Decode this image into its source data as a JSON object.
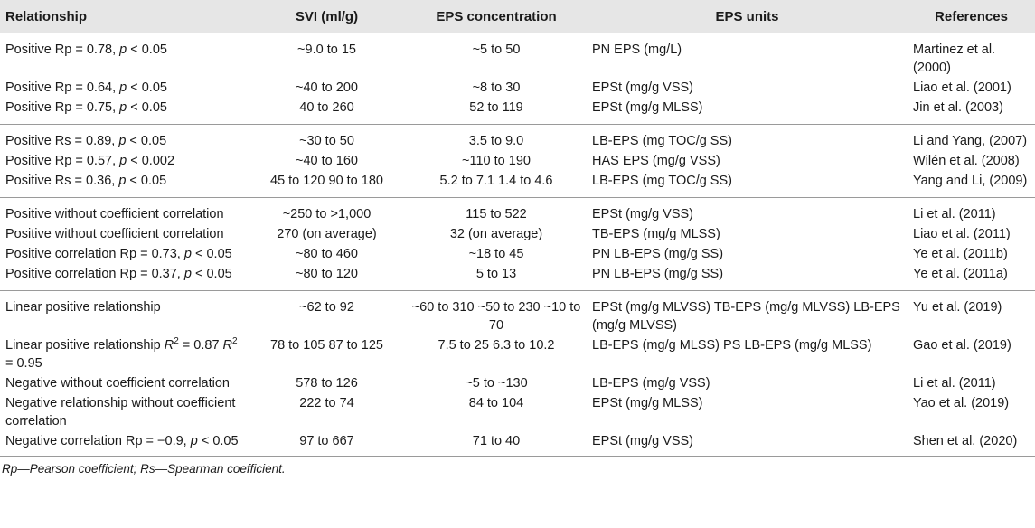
{
  "headers": {
    "relationship": "Relationship",
    "svi": "SVI (ml/g)",
    "eps_conc": "EPS concentration",
    "eps_units": "EPS units",
    "references": "References"
  },
  "rows": [
    {
      "rel": "Positive Rp = 0.78, p < 0.05",
      "svi": "~9.0 to 15",
      "conc": "~5 to 50",
      "units": "PN EPS (mg/L)",
      "ref": "Martinez et al. (2000)"
    },
    {
      "rel": "Positive Rp = 0.64, p < 0.05",
      "svi": "~40 to 200",
      "conc": "~8 to 30",
      "units": "EPSt (mg/g VSS)",
      "ref": "Liao et al. (2001)"
    },
    {
      "rel": "Positive Rp = 0.75, p < 0.05",
      "svi": "40 to 260",
      "conc": "52 to 119",
      "units": "EPSt (mg/g MLSS)",
      "ref": "Jin et al. (2003)"
    },
    {
      "rel": "Positive Rs = 0.89, p < 0.05",
      "svi": "~30 to 50",
      "conc": "3.5 to 9.0",
      "units": "LB-EPS (mg TOC/g SS)",
      "ref": "Li and Yang, (2007)"
    },
    {
      "rel": "Positive Rp = 0.57, p < 0.002",
      "svi": "~40 to 160",
      "conc": "~110 to 190",
      "units": "HAS EPS (mg/g VSS)",
      "ref": "Wilén et al. (2008)"
    },
    {
      "rel": "Positive Rs = 0.36, p < 0.05",
      "svi": "45 to 120 90 to 180",
      "conc": "5.2 to 7.1 1.4 to 4.6",
      "units": "LB-EPS (mg TOC/g SS)",
      "ref": "Yang and Li, (2009)"
    },
    {
      "rel": "Positive without coefficient correlation",
      "svi": "~250 to >1,000",
      "conc": "115 to 522",
      "units": "EPSt (mg/g VSS)",
      "ref": "Li et al. (2011)"
    },
    {
      "rel": "Positive without coefficient correlation",
      "svi": "270 (on average)",
      "conc": "32 (on average)",
      "units": "TB-EPS (mg/g MLSS)",
      "ref": "Liao et al. (2011)"
    },
    {
      "rel": "Positive correlation Rp = 0.73, p < 0.05",
      "svi": "~80 to 460",
      "conc": "~18 to 45",
      "units": "PN LB-EPS (mg/g SS)",
      "ref": "Ye et al. (2011b)"
    },
    {
      "rel": "Positive correlation Rp = 0.37, p < 0.05",
      "svi": "~80 to 120",
      "conc": "5 to 13",
      "units": "PN LB-EPS (mg/g SS)",
      "ref": "Ye et al. (2011a)"
    },
    {
      "rel": "Linear positive relationship",
      "svi": "~62 to 92",
      "conc": "~60 to 310 ~50 to 230 ~10 to 70",
      "units": "EPSt (mg/g MLVSS) TB-EPS (mg/g MLVSS) LB-EPS (mg/g MLVSS)",
      "ref": "Yu et al. (2019)"
    },
    {
      "rel": "Linear positive relationship R2 = 0.87 R2 = 0.95",
      "svi": "78 to 105 87 to 125",
      "conc": "7.5 to 25 6.3 to 10.2",
      "units": "LB-EPS (mg/g MLSS) PS LB-EPS (mg/g MLSS)",
      "ref": "Gao et al. (2019)"
    },
    {
      "rel": "Negative without coefficient correlation",
      "svi": "578 to 126",
      "conc": "~5 to ~130",
      "units": "LB-EPS (mg/g VSS)",
      "ref": "Li et al. (2011)"
    },
    {
      "rel": "Negative relationship without coefficient correlation",
      "svi": "222 to 74",
      "conc": "84 to 104",
      "units": "EPSt (mg/g MLSS)",
      "ref": "Yao et al. (2019)"
    },
    {
      "rel": "Negative correlation Rp = −0.9, p < 0.05",
      "svi": "97 to 667",
      "conc": "71 to 40",
      "units": "EPSt (mg/g VSS)",
      "ref": "Shen et al. (2020)"
    }
  ],
  "rel_parts": {
    "r0": {
      "a": "Positive Rp = 0.78, ",
      "p": "p",
      "b": " < 0.05"
    },
    "r1": {
      "a": "Positive Rp = 0.64, ",
      "p": "p",
      "b": " < 0.05"
    },
    "r2": {
      "a": "Positive Rp = 0.75, ",
      "p": "p",
      "b": " < 0.05"
    },
    "r3": {
      "a": "Positive Rs = 0.89, ",
      "p": "p",
      "b": " < 0.05"
    },
    "r4": {
      "a": "Positive Rp = 0.57, ",
      "p": "p",
      "b": " < 0.002"
    },
    "r5": {
      "a": "Positive Rs = 0.36, ",
      "p": "p",
      "b": " < 0.05"
    },
    "r8": {
      "a": "Positive correlation Rp = 0.73, ",
      "p": "p",
      "b": " < 0.05"
    },
    "r9": {
      "a": "Positive correlation Rp = 0.37, ",
      "p": "p",
      "b": " < 0.05"
    },
    "r11": {
      "a": "Linear positive relationship ",
      "R1": "R",
      "e1": "2",
      "m": " = 0.87 ",
      "R2": "R",
      "e2": "2",
      "b": " = 0.95"
    },
    "r14": {
      "a": "Negative correlation Rp = −0.9, ",
      "p": "p",
      "b": " < 0.05"
    }
  },
  "footnote": "Rp—Pearson coefficient; Rs—Spearman coefficient."
}
